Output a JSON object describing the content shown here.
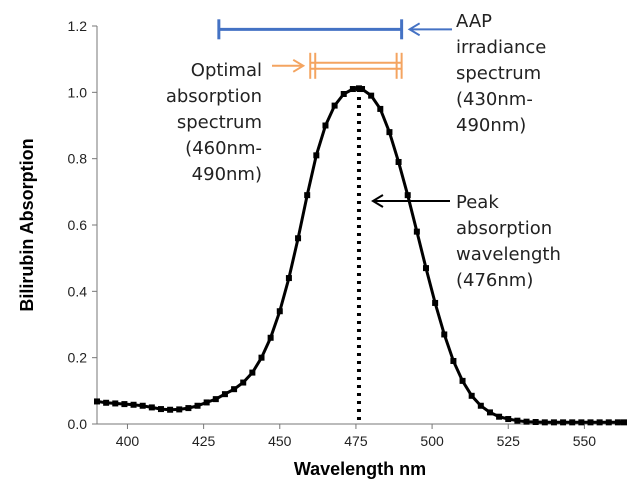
{
  "chart_data": {
    "type": "line",
    "title": "",
    "xlabel": "Wavelength nm",
    "ylabel": "Bilirubin Absorption",
    "xlim": [
      390,
      563
    ],
    "ylim": [
      0.0,
      1.2
    ],
    "xticks": [
      "400",
      "425",
      "450",
      "475",
      "500",
      "525",
      "550"
    ],
    "yticks": [
      "0.0",
      "0.2",
      "0.4",
      "0.6",
      "0.8",
      "1.0",
      "1.2"
    ],
    "grid": false,
    "series": [
      {
        "color": "#000000",
        "marker": "square",
        "x": [
          390,
          393,
          396,
          399,
          402,
          405,
          408,
          411,
          414,
          417,
          420,
          423,
          426,
          429,
          432,
          435,
          438,
          441,
          444,
          447,
          450,
          453,
          456,
          459,
          462,
          465,
          468,
          471,
          474,
          476,
          477,
          480,
          483,
          486,
          489,
          492,
          495,
          498,
          501,
          504,
          507,
          510,
          513,
          516,
          519,
          522,
          525,
          528,
          531,
          534,
          537,
          540,
          543,
          546,
          549,
          552,
          555,
          558,
          561,
          563
        ],
        "y": [
          0.068,
          0.064,
          0.062,
          0.06,
          0.058,
          0.055,
          0.05,
          0.045,
          0.043,
          0.044,
          0.048,
          0.055,
          0.065,
          0.075,
          0.09,
          0.105,
          0.125,
          0.155,
          0.2,
          0.26,
          0.34,
          0.44,
          0.56,
          0.69,
          0.81,
          0.9,
          0.96,
          0.995,
          1.01,
          1.012,
          1.01,
          0.99,
          0.95,
          0.88,
          0.79,
          0.69,
          0.58,
          0.47,
          0.365,
          0.27,
          0.19,
          0.13,
          0.085,
          0.055,
          0.035,
          0.022,
          0.015,
          0.01,
          0.007,
          0.006,
          0.005,
          0.005,
          0.005,
          0.005,
          0.005,
          0.005,
          0.005,
          0.005,
          0.005,
          0.005
        ]
      }
    ],
    "peak_line": {
      "x": 476,
      "y_top": 1.01
    },
    "ranges": [
      {
        "label_lines": [
          "AAP",
          "irradiance",
          "spectrum",
          "(430nm-",
          "490nm)"
        ],
        "x_start": 430,
        "x_end": 490,
        "color": "#4472C4",
        "y_level": 1.19
      },
      {
        "label_lines": [
          "Optimal",
          "absorption",
          "spectrum",
          "(460nm-",
          "490nm)"
        ],
        "x_start": 460,
        "x_end": 490,
        "color": "#F4A460",
        "y_level": 1.08
      }
    ],
    "peak_annotation": {
      "label_lines": [
        "Peak",
        "absorption",
        "wavelength",
        "(476nm)"
      ]
    }
  }
}
